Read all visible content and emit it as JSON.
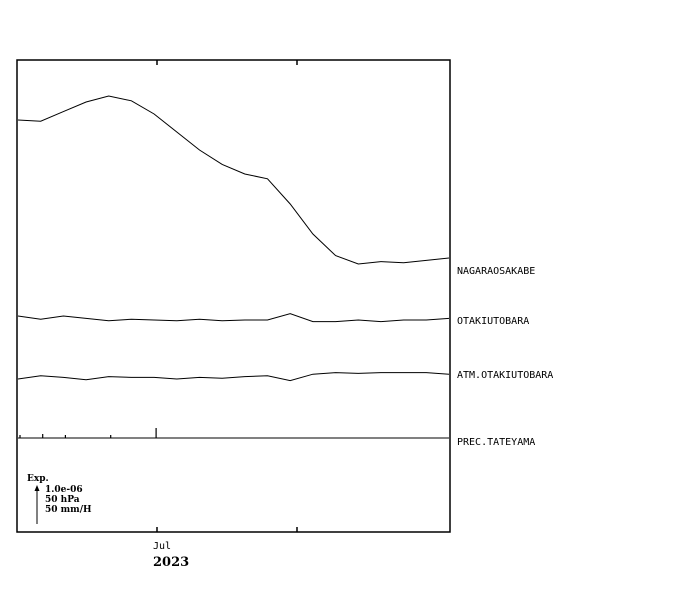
{
  "chart_data": {
    "type": "line",
    "x_axis": {
      "tick_label": "Jul",
      "year_label": "2023"
    },
    "series": [
      {
        "name": "NAGARAOSAKABE",
        "values": [
          0.5,
          0.4,
          1.2,
          2.0,
          2.5,
          2.1,
          1.0,
          -0.5,
          -2.0,
          -3.2,
          -4.0,
          -4.4,
          -6.5,
          -9.0,
          -10.8,
          -11.5,
          -11.3,
          -11.4,
          -11.2,
          -11.0
        ]
      },
      {
        "name": "OTAKIUTOBARA",
        "values": [
          0.5,
          0.1,
          0.5,
          0.2,
          -0.1,
          0.1,
          0.0,
          -0.1,
          0.1,
          -0.1,
          0.0,
          0.0,
          0.8,
          -0.2,
          -0.2,
          0.0,
          -0.2,
          0.0,
          0.0,
          0.2
        ]
      },
      {
        "name": "ATM.OTAKIUTOBARA",
        "values": [
          0.0,
          0.4,
          0.2,
          -0.1,
          0.3,
          0.2,
          0.2,
          0.0,
          0.2,
          0.1,
          0.3,
          0.4,
          -0.2,
          0.6,
          0.8,
          0.7,
          0.8,
          0.8,
          0.8,
          0.6
        ]
      },
      {
        "name": "PREC.TATEYAMA",
        "values": [
          0.3,
          0.4,
          0.3,
          0.0,
          0.3,
          0.0,
          1.0,
          0.0,
          0.0,
          0.0,
          0.0,
          0.0,
          0.0,
          0.0,
          0.0,
          0.0,
          0.0,
          0.0,
          0.0,
          0.0
        ]
      }
    ],
    "scale_bar": {
      "title": "Exp.",
      "lines": [
        "1.0e-06",
        "50 hPa",
        "50 mm/H"
      ]
    }
  }
}
